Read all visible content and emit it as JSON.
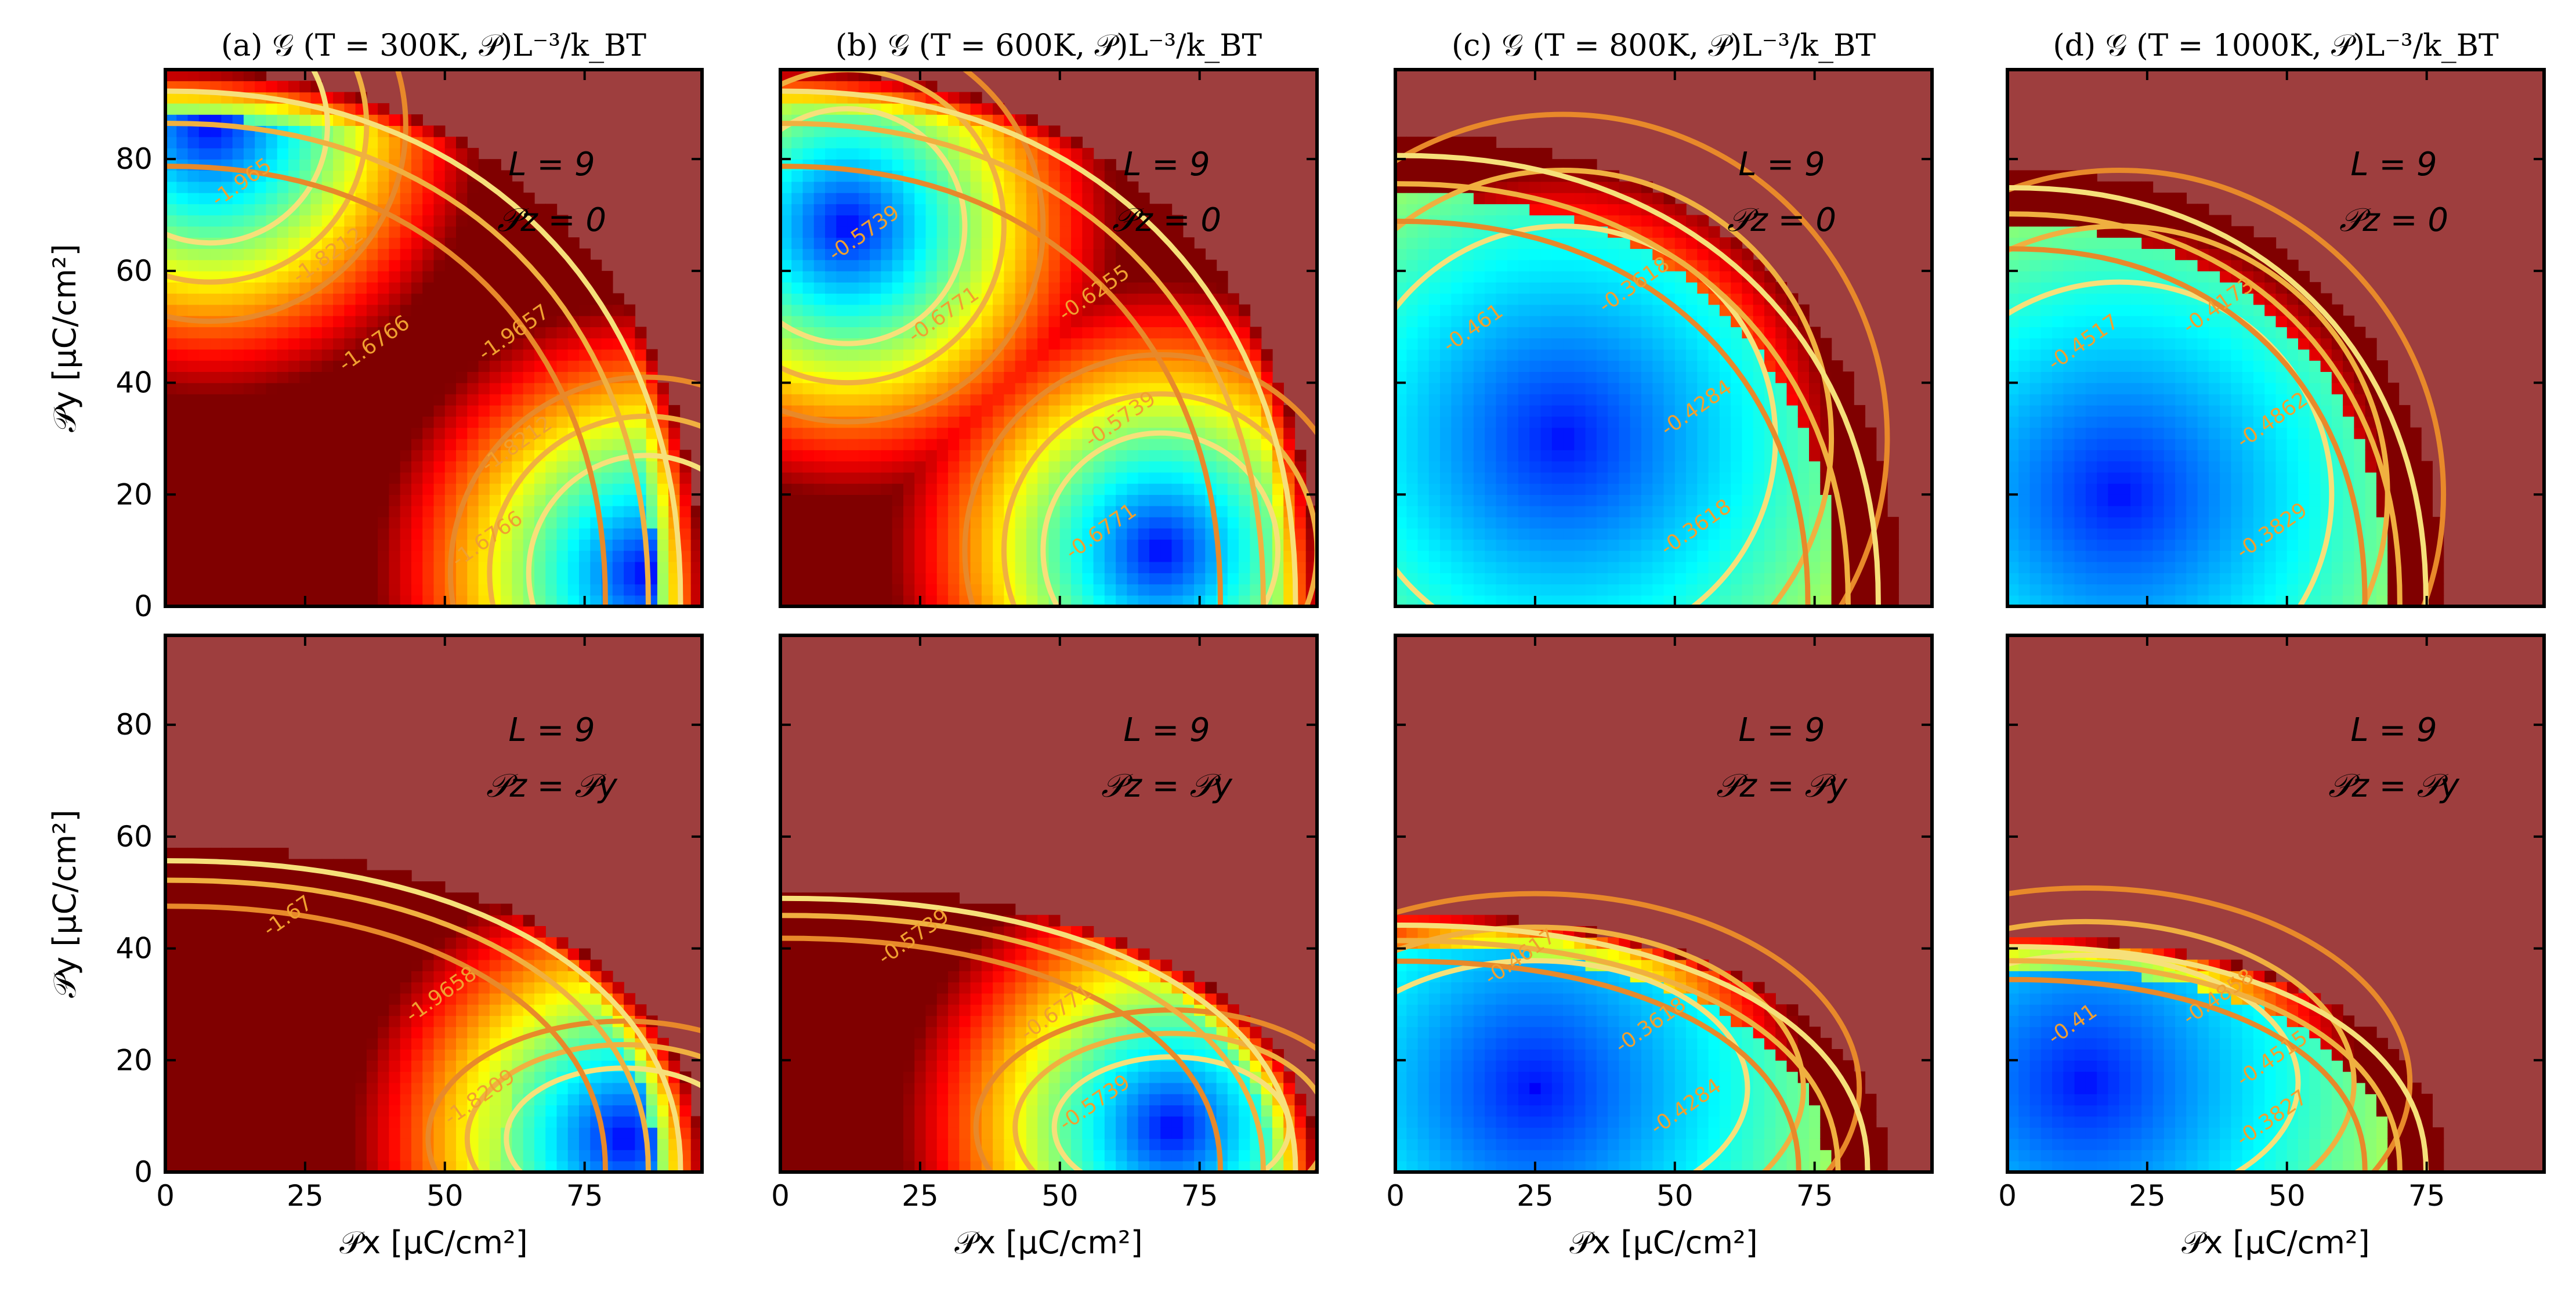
{
  "chart_data": {
    "type": "heatmap",
    "layout": {
      "rows": 2,
      "cols": 4
    },
    "titles": [
      "(a) 𝒢 (T = 300K, 𝒫)L⁻³/k_BT",
      "(b) 𝒢 (T = 600K, 𝒫)L⁻³/k_BT",
      "(c) 𝒢 (T = 800K, 𝒫)L⁻³/k_BT",
      "(d) 𝒢 (T = 1000K, 𝒫)L⁻³/k_BT"
    ],
    "xlabel": "𝒫x [μC/cm²]",
    "ylabel": "𝒫y [μC/cm²]",
    "xlim": [
      0,
      96
    ],
    "ylim": [
      0,
      96
    ],
    "xticks": [
      "0",
      "25",
      "50",
      "75"
    ],
    "yticks": [
      "0",
      "20",
      "40",
      "60",
      "80"
    ],
    "colormap": "jet",
    "outside_color": "#9e3e3e",
    "panels": [
      {
        "id": "a-top",
        "T": 300,
        "L_label": "L = 9",
        "pz_label": "𝒫z = 0",
        "boundary": {
          "px0": 96,
          "py0": 96
        },
        "minima": [
          [
            8,
            86
          ],
          [
            86,
            6
          ]
        ],
        "contour_labels": [
          "-1.6766",
          "-1.8212",
          "-1.9657",
          "-1.6766",
          "-1.8212",
          "-1.965"
        ]
      },
      {
        "id": "b-top",
        "T": 600,
        "L_label": "L = 9",
        "pz_label": "𝒫z = 0",
        "boundary": {
          "px0": 96,
          "py0": 96
        },
        "minima": [
          [
            12,
            68
          ],
          [
            68,
            10
          ]
        ],
        "contour_labels": [
          "-0.6771",
          "-0.5739",
          "-0.6255",
          "-0.6771",
          "-0.5739"
        ]
      },
      {
        "id": "c-top",
        "T": 800,
        "L_label": "L = 9",
        "pz_label": "𝒫z = 0",
        "boundary": {
          "px0": 90,
          "py0": 84
        },
        "minima": [
          [
            30,
            30
          ]
        ],
        "contour_labels": [
          "-0.3618",
          "-0.4284",
          "-0.3618",
          "-0.461"
        ]
      },
      {
        "id": "d-top",
        "T": 1000,
        "L_label": "L = 9",
        "pz_label": "𝒫z = 0",
        "boundary": {
          "px0": 78,
          "py0": 78
        },
        "minima": [
          [
            20,
            20
          ]
        ],
        "contour_labels": [
          "-0.3829",
          "-0.4862",
          "-0.4173",
          "-0.4517"
        ]
      },
      {
        "id": "a-bottom",
        "T": 300,
        "L_label": "L = 9",
        "pz_label": "𝒫z = 𝒫y",
        "boundary": {
          "px0": 96,
          "py0": 58
        },
        "minima": [
          [
            82,
            6
          ]
        ],
        "contour_labels": [
          "-1.8209",
          "-1.9658",
          "-1.67"
        ]
      },
      {
        "id": "b-bottom",
        "T": 600,
        "L_label": "L = 9",
        "pz_label": "𝒫z = 𝒫y",
        "boundary": {
          "px0": 96,
          "py0": 51
        },
        "minima": [
          [
            70,
            8
          ]
        ],
        "contour_labels": [
          "-0.5739",
          "-0.6771",
          "-0.5739"
        ]
      },
      {
        "id": "c-bottom",
        "T": 800,
        "L_label": "L = 9",
        "pz_label": "𝒫z = 𝒫y",
        "boundary": {
          "px0": 88,
          "py0": 46
        },
        "minima": [
          [
            25,
            15
          ]
        ],
        "contour_labels": [
          "-0.4284",
          "-0.3618",
          "-0.4617"
        ]
      },
      {
        "id": "d-bottom",
        "T": 1000,
        "L_label": "L = 9",
        "pz_label": "𝒫z = 𝒫y",
        "boundary": {
          "px0": 78,
          "py0": 42
        },
        "minima": [
          [
            14,
            16
          ]
        ],
        "contour_labels": [
          "-0.3827",
          "-0.4515",
          "-0.4858",
          "-0.41"
        ]
      }
    ]
  }
}
